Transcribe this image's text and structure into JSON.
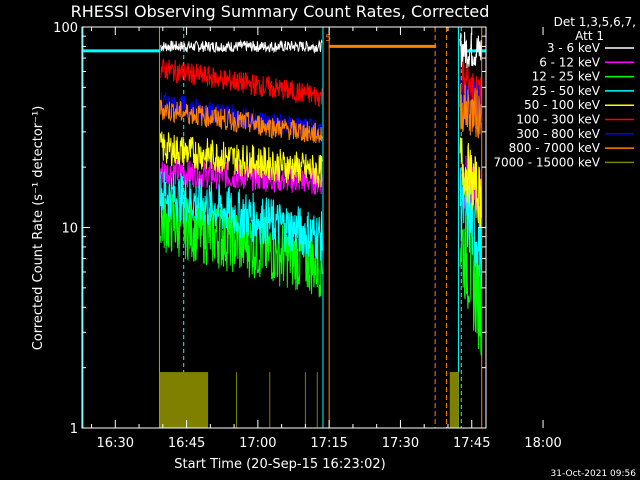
{
  "chart_data": {
    "type": "line",
    "title": "RHESSI Observing Summary Count Rates, Corrected",
    "xlabel": "Start Time (20-Sep-15 16:23:02)",
    "ylabel": "Corrected Count Rate (s⁻¹ detector⁻¹)",
    "yscale": "log",
    "ylim": [
      1,
      100
    ],
    "xlim_min": [
      23,
      108
    ],
    "x_ticks": [
      {
        "min": 30,
        "label": "16:30"
      },
      {
        "min": 45,
        "label": "16:45"
      },
      {
        "min": 60,
        "label": "17:00"
      },
      {
        "min": 75,
        "label": "17:15"
      },
      {
        "min": 90,
        "label": "17:30"
      },
      {
        "min": 105,
        "label": "17:45"
      },
      {
        "min": 120,
        "label": "18:00"
      }
    ],
    "y_ticks": [
      {
        "value": 1,
        "label": "1"
      },
      {
        "value": 10,
        "label": "10"
      },
      {
        "value": 100,
        "label": "100"
      }
    ],
    "legend_header": [
      "Det 1,3,5,6,7,",
      "Att 1"
    ],
    "legend_position": "right",
    "series": [
      {
        "name": "3 - 6 keV",
        "color": "#ffffff",
        "x_range": [
          39.5,
          73.5
        ],
        "start": 80,
        "end": 80,
        "noise": 0.02
      },
      {
        "name": "6 - 12 keV",
        "color": "#ff00ff",
        "x_range": [
          39.5,
          73.5
        ],
        "start": 19,
        "end": 17,
        "noise": 0.05
      },
      {
        "name": "12 - 25 keV",
        "color": "#00ff00",
        "x_range": [
          39.5,
          73.5
        ],
        "start": 11,
        "end": 6.5,
        "noise": 0.12
      },
      {
        "name": "25 - 50 keV",
        "color": "#00ffff",
        "x_range": [
          39.5,
          73.5
        ],
        "start": 15,
        "end": 9,
        "noise": 0.09
      },
      {
        "name": "50 - 100 keV",
        "color": "#ffff00",
        "x_range": [
          39.5,
          73.5
        ],
        "start": 25,
        "end": 19,
        "noise": 0.06
      },
      {
        "name": "100 - 300 keV",
        "color": "#ff0000",
        "x_range": [
          39.5,
          73.5
        ],
        "start": 62,
        "end": 45,
        "noise": 0.04
      },
      {
        "name": "300 - 800 keV",
        "color": "#0000ff",
        "x_range": [
          39.5,
          73.5
        ],
        "start": 42,
        "end": 30,
        "noise": 0.04
      },
      {
        "name": "800 - 7000 keV",
        "color": "#ff8000",
        "x_range": [
          39.5,
          73.5
        ],
        "start": 39,
        "end": 29,
        "noise": 0.04
      },
      {
        "name": "7000 - 15000 keV",
        "color": "#808000",
        "x_range": [
          39.5,
          49.5
        ],
        "start": 1.9,
        "end": 1.9,
        "noise": 0.0
      }
    ],
    "second_interval": {
      "x_range": [
        102.5,
        107.0
      ],
      "values": {
        "3 - 6 keV": [
          78,
          76
        ],
        "6 - 12 keV": [
          18,
          14
        ],
        "12 - 25 keV": [
          9,
          4
        ],
        "25 - 50 keV": [
          14,
          8
        ],
        "50 - 100 keV": [
          22,
          14
        ],
        "100 - 300 keV": [
          55,
          42
        ],
        "300 - 800 keV": [
          45,
          38
        ],
        "800 - 7000 keV": [
          40,
          36
        ]
      }
    },
    "flag_lines": [
      {
        "color": "#00ffff",
        "y": 76,
        "x_ranges": [
          [
            23,
            39.5
          ],
          [
            103,
            108
          ]
        ]
      },
      {
        "color": "#ff8000",
        "y": 80,
        "x_ranges": [
          [
            75,
            97.5
          ]
        ]
      }
    ],
    "orange_marker": "5"
  },
  "footer": {
    "timestamp": "31-Oct-2021 09:56"
  }
}
